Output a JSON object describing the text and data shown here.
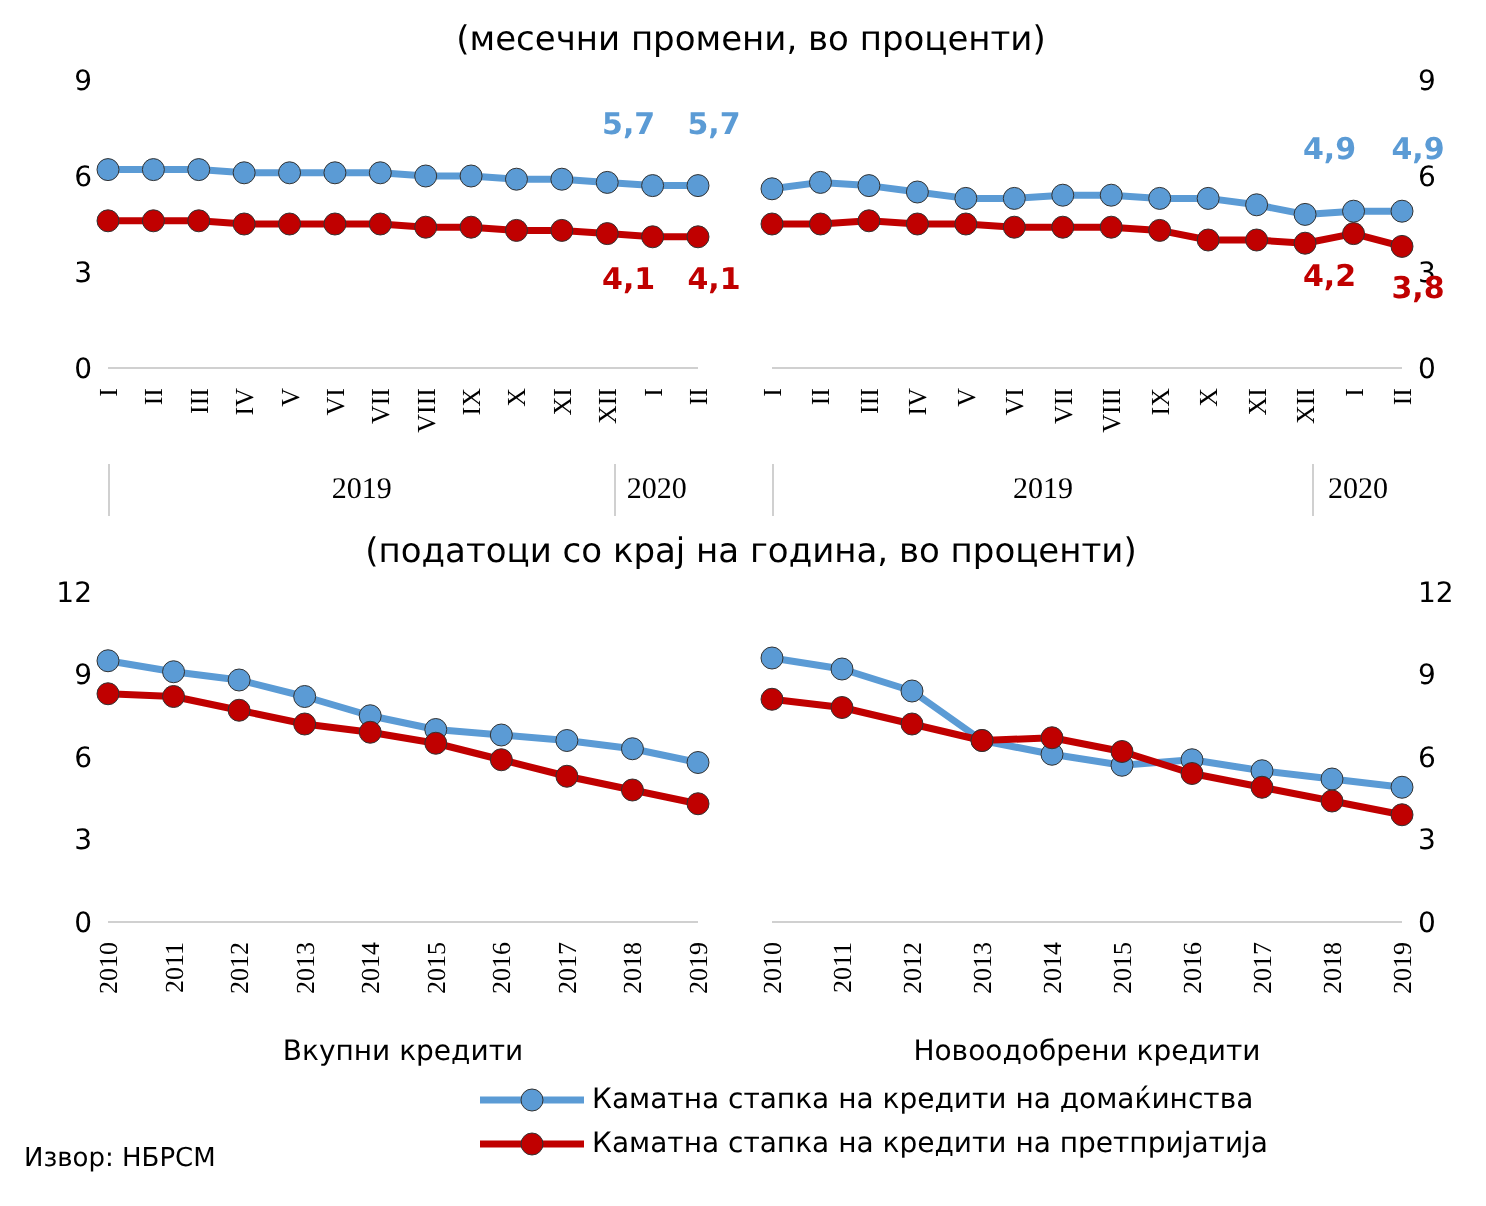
{
  "chart_data": [
    {
      "type": "line",
      "title": "(месечни промени, во проценти)",
      "categories": [
        "I",
        "II",
        "III",
        "IV",
        "V",
        "VI",
        "VII",
        "VIII",
        "IX",
        "X",
        "XI",
        "XII",
        "I",
        "II"
      ],
      "annotations": [
        "2019",
        "2020"
      ],
      "ylim": [
        0,
        9
      ],
      "yticks": [
        0,
        3,
        6,
        9
      ],
      "marker": "circle",
      "series": [
        {
          "color": "#5b9bd5",
          "values": [
            6.2,
            6.2,
            6.2,
            6.1,
            6.1,
            6.1,
            6.1,
            6.0,
            6.0,
            5.9,
            5.9,
            5.8,
            5.7,
            5.7
          ],
          "value_labels": [
            null,
            null,
            null,
            null,
            null,
            null,
            null,
            null,
            null,
            null,
            null,
            null,
            "5,7",
            "5,7"
          ]
        },
        {
          "color": "#c00000",
          "values": [
            4.6,
            4.6,
            4.6,
            4.5,
            4.5,
            4.5,
            4.5,
            4.4,
            4.4,
            4.3,
            4.3,
            4.2,
            4.1,
            4.1
          ],
          "value_labels": [
            null,
            null,
            null,
            null,
            null,
            null,
            null,
            null,
            null,
            null,
            null,
            null,
            "4,1",
            "4,1"
          ]
        }
      ]
    },
    {
      "type": "line",
      "categories": [
        "I",
        "II",
        "III",
        "IV",
        "V",
        "VI",
        "VII",
        "VIII",
        "IX",
        "X",
        "XI",
        "XII",
        "I",
        "II"
      ],
      "annotations": [
        "2019",
        "2020"
      ],
      "ylim": [
        0,
        9
      ],
      "yticks": [
        0,
        3,
        6,
        9
      ],
      "marker": "circle",
      "series": [
        {
          "color": "#5b9bd5",
          "values": [
            5.6,
            5.8,
            5.7,
            5.5,
            5.3,
            5.3,
            5.4,
            5.4,
            5.3,
            5.3,
            5.1,
            4.8,
            4.9,
            4.9
          ],
          "value_labels": [
            null,
            null,
            null,
            null,
            null,
            null,
            null,
            null,
            null,
            null,
            null,
            null,
            "4,9",
            "4,9"
          ]
        },
        {
          "color": "#c00000",
          "values": [
            4.5,
            4.5,
            4.6,
            4.5,
            4.5,
            4.4,
            4.4,
            4.4,
            4.3,
            4.0,
            4.0,
            3.9,
            4.2,
            3.8
          ],
          "value_labels": [
            null,
            null,
            null,
            null,
            null,
            null,
            null,
            null,
            null,
            null,
            null,
            null,
            "4,2",
            "3,8"
          ]
        }
      ]
    },
    {
      "type": "line",
      "title": "(податоци со крај на година, во проценти)",
      "xlabel": "Вкупни кредити",
      "categories": [
        "2010",
        "2011",
        "2012",
        "2013",
        "2014",
        "2015",
        "2016",
        "2017",
        "2018",
        "2019"
      ],
      "ylim": [
        0,
        12
      ],
      "yticks": [
        0,
        3,
        6,
        9,
        12
      ],
      "marker": "circle",
      "series": [
        {
          "color": "#5b9bd5",
          "values": [
            9.5,
            9.1,
            8.8,
            8.2,
            7.5,
            7.0,
            6.8,
            6.6,
            6.3,
            5.8
          ]
        },
        {
          "color": "#c00000",
          "values": [
            8.3,
            8.2,
            7.7,
            7.2,
            6.9,
            6.5,
            5.9,
            5.3,
            4.8,
            4.3
          ]
        }
      ]
    },
    {
      "type": "line",
      "xlabel": "Новоодобрени кредити",
      "categories": [
        "2010",
        "2011",
        "2012",
        "2013",
        "2014",
        "2015",
        "2016",
        "2017",
        "2018",
        "2019"
      ],
      "ylim": [
        0,
        12
      ],
      "yticks": [
        0,
        3,
        6,
        9,
        12
      ],
      "marker": "circle",
      "legend": "bottom",
      "annotations": [
        "Извор: НБРСМ"
      ],
      "series": [
        {
          "name": "Каматна стапка на кредити на домаќинства",
          "color": "#5b9bd5",
          "values": [
            9.6,
            9.2,
            8.4,
            6.6,
            6.1,
            5.7,
            5.9,
            5.5,
            5.2,
            4.9
          ]
        },
        {
          "name": "Каматна стапка на кредити на претпријатија",
          "color": "#c00000",
          "values": [
            8.1,
            7.8,
            7.2,
            6.6,
            6.7,
            6.2,
            5.4,
            4.9,
            4.4,
            3.9
          ]
        }
      ]
    }
  ]
}
